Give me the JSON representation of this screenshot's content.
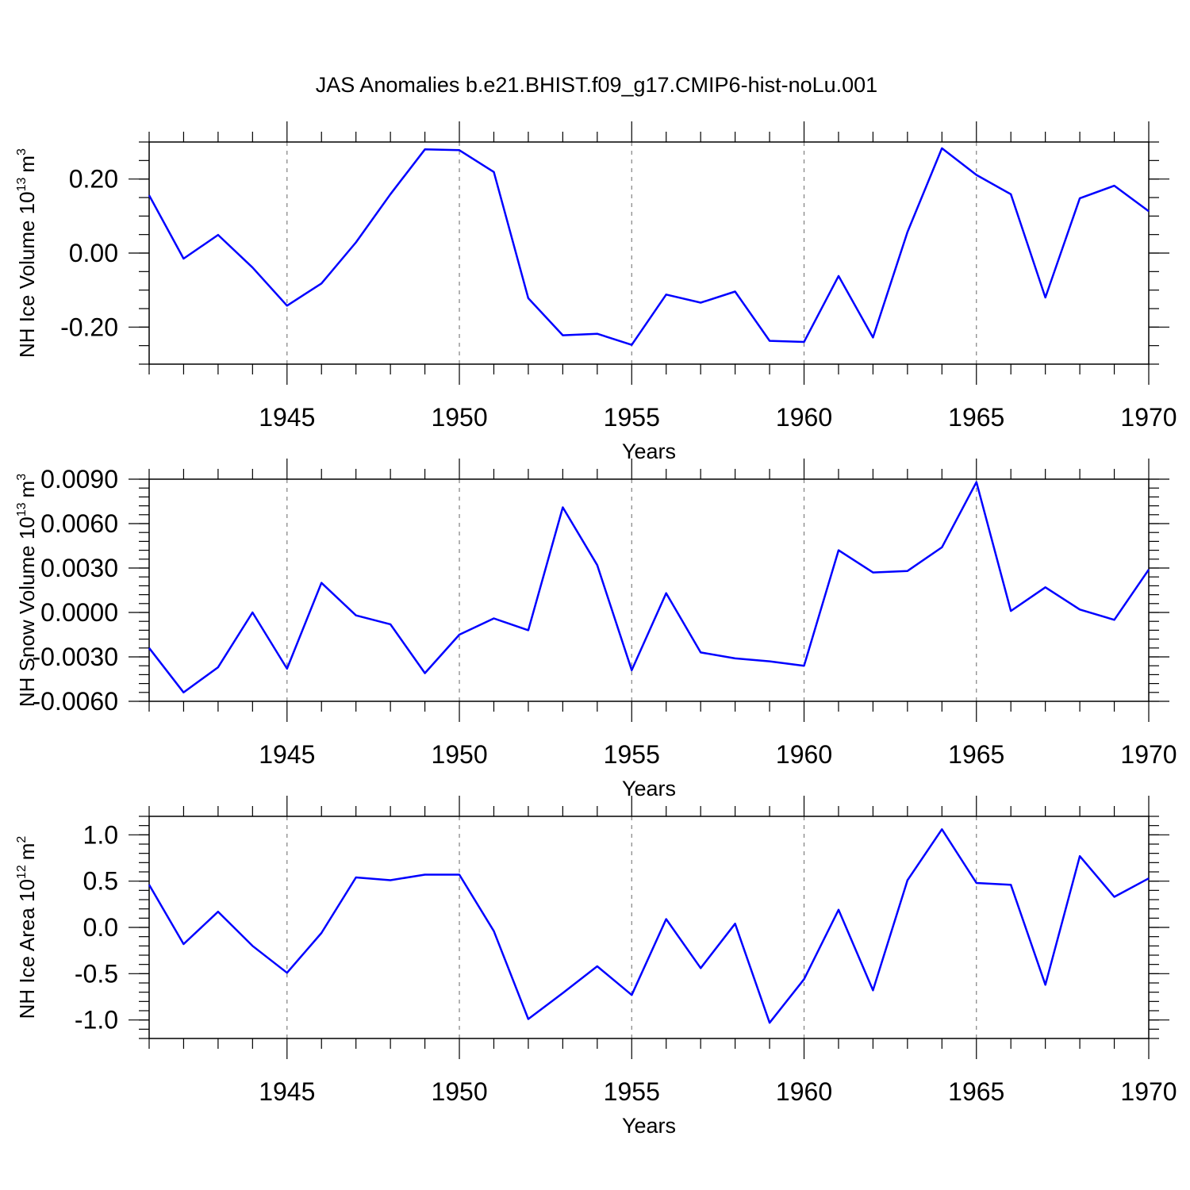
{
  "title": "JAS Anomalies b.e21.BHIST.f09_g17.CMIP6-hist-noLu.001",
  "colors": {
    "line": "#0000ff",
    "axis": "#000000",
    "grid": "#808080"
  },
  "chart_data": [
    {
      "type": "line",
      "ylabel_main": "NH Ice Volume 10",
      "ylabel_sup": "13",
      "ylabel_unit": "m",
      "ylabel_unit_sup": "3",
      "xlabel": "Years",
      "xlim": [
        1941,
        1970
      ],
      "ylim": [
        -0.3,
        0.3
      ],
      "x_ticks": [
        1945,
        1950,
        1955,
        1960,
        1965,
        1970
      ],
      "x_tick_labels": [
        "1945",
        "1950",
        "1955",
        "1960",
        "1965",
        "1970"
      ],
      "y_ticks": [
        0.2,
        0.0,
        -0.2
      ],
      "y_tick_labels": [
        "0.20",
        "0.00",
        "-0.20"
      ],
      "y_minor_step": 0.05,
      "x": [
        1941,
        1942,
        1943,
        1944,
        1945,
        1946,
        1947,
        1948,
        1949,
        1950,
        1951,
        1952,
        1953,
        1954,
        1955,
        1956,
        1957,
        1958,
        1959,
        1960,
        1961,
        1962,
        1963,
        1964,
        1965,
        1966,
        1967,
        1968,
        1969,
        1970
      ],
      "series": [
        {
          "name": "NH Ice Volume",
          "values": [
            0.156,
            -0.015,
            0.049,
            -0.039,
            -0.142,
            -0.082,
            0.029,
            0.159,
            0.28,
            0.278,
            0.219,
            -0.122,
            -0.222,
            -0.218,
            -0.248,
            -0.112,
            -0.134,
            -0.104,
            -0.237,
            -0.24,
            -0.062,
            -0.228,
            0.057,
            0.283,
            0.211,
            0.159,
            -0.12,
            0.148,
            0.182,
            0.113
          ]
        }
      ]
    },
    {
      "type": "line",
      "ylabel_main": "NH Snow Volume 10",
      "ylabel_sup": "13",
      "ylabel_unit": "m",
      "ylabel_unit_sup": "3",
      "xlabel": "Years",
      "xlim": [
        1941,
        1970
      ],
      "ylim": [
        -0.006,
        0.009
      ],
      "x_ticks": [
        1945,
        1950,
        1955,
        1960,
        1965,
        1970
      ],
      "x_tick_labels": [
        "1945",
        "1950",
        "1955",
        "1960",
        "1965",
        "1970"
      ],
      "y_ticks": [
        0.009,
        0.006,
        0.003,
        0.0,
        -0.003,
        -0.006
      ],
      "y_tick_labels": [
        "0.0090",
        "0.0060",
        "0.0030",
        "0.0000",
        "-0.0030",
        "-0.0060"
      ],
      "y_minor_step": 0.0006,
      "x": [
        1941,
        1942,
        1943,
        1944,
        1945,
        1946,
        1947,
        1948,
        1949,
        1950,
        1951,
        1952,
        1953,
        1954,
        1955,
        1956,
        1957,
        1958,
        1959,
        1960,
        1961,
        1962,
        1963,
        1964,
        1965,
        1966,
        1967,
        1968,
        1969,
        1970
      ],
      "series": [
        {
          "name": "NH Snow Volume",
          "values": [
            -0.0024,
            -0.0054,
            -0.0037,
            0.0,
            -0.0038,
            0.002,
            -0.0002,
            -0.0008,
            -0.0041,
            -0.0015,
            -0.0004,
            -0.0012,
            0.0071,
            0.0032,
            -0.0039,
            0.0013,
            -0.0027,
            -0.0031,
            -0.0033,
            -0.0036,
            0.0042,
            0.0027,
            0.0028,
            0.0044,
            0.0088,
            0.0001,
            0.0017,
            0.0002,
            -0.0005,
            0.0029
          ]
        }
      ]
    },
    {
      "type": "line",
      "ylabel_main": "NH Ice Area 10",
      "ylabel_sup": "12",
      "ylabel_unit": "m",
      "ylabel_unit_sup": "2",
      "xlabel": "Years",
      "xlim": [
        1941,
        1970
      ],
      "ylim": [
        -1.2,
        1.2
      ],
      "x_ticks": [
        1945,
        1950,
        1955,
        1960,
        1965,
        1970
      ],
      "x_tick_labels": [
        "1945",
        "1950",
        "1955",
        "1960",
        "1965",
        "1970"
      ],
      "y_ticks": [
        1.0,
        0.5,
        0.0,
        -0.5,
        -1.0
      ],
      "y_tick_labels": [
        "1.0",
        "0.5",
        "0.0",
        "-0.5",
        "-1.0"
      ],
      "y_minor_step": 0.1,
      "x": [
        1941,
        1942,
        1943,
        1944,
        1945,
        1946,
        1947,
        1948,
        1949,
        1950,
        1951,
        1952,
        1953,
        1954,
        1955,
        1956,
        1957,
        1958,
        1959,
        1960,
        1961,
        1962,
        1963,
        1964,
        1965,
        1966,
        1967,
        1968,
        1969,
        1970
      ],
      "series": [
        {
          "name": "NH Ice Area",
          "values": [
            0.46,
            -0.18,
            0.17,
            -0.2,
            -0.49,
            -0.06,
            0.54,
            0.51,
            0.57,
            0.57,
            -0.04,
            -0.99,
            -0.71,
            -0.42,
            -0.73,
            0.09,
            -0.44,
            0.04,
            -1.03,
            -0.56,
            0.19,
            -0.68,
            0.51,
            1.06,
            0.48,
            0.46,
            -0.62,
            0.77,
            0.33,
            0.53
          ]
        }
      ]
    }
  ]
}
